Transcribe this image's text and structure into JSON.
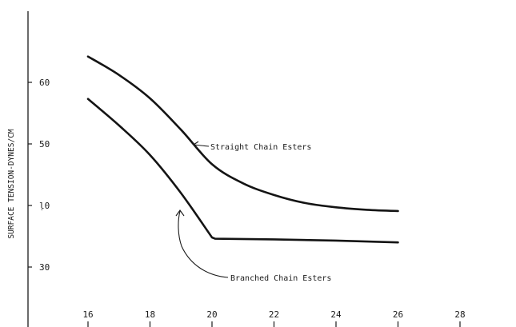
{
  "chart_data": {
    "type": "line",
    "ylabel": "SURFACE TENSION-DYNES/CM",
    "xlabel": "",
    "xlim": [
      14.1,
      30
    ],
    "ylim": [
      20,
      73
    ],
    "x_ticks": [
      "16",
      "18",
      "20",
      "22",
      "24",
      "26",
      "28"
    ],
    "y_ticks": [
      "30",
      "40",
      "50",
      "60"
    ],
    "y_tick_display": [
      "30",
      "ḷ0",
      "50",
      "60"
    ],
    "grid": false,
    "series": [
      {
        "name": "Straight Chain Esters",
        "x": [
          16,
          17,
          18,
          19,
          20,
          21,
          22,
          23,
          24,
          25,
          26
        ],
        "y": [
          64.2,
          61.2,
          57.4,
          52.3,
          46.7,
          43.6,
          41.7,
          40.4,
          39.7,
          39.3,
          39.1
        ]
      },
      {
        "name": "Branched Chain Esters",
        "x": [
          16,
          17,
          18,
          19,
          20,
          20.1,
          22,
          24,
          26
        ],
        "y": [
          57.3,
          53.0,
          48.2,
          42.0,
          34.8,
          34.6,
          34.5,
          34.3,
          34.0
        ]
      }
    ],
    "annotations": [
      "Straight Chain Esters",
      "Branched Chain Esters"
    ]
  }
}
